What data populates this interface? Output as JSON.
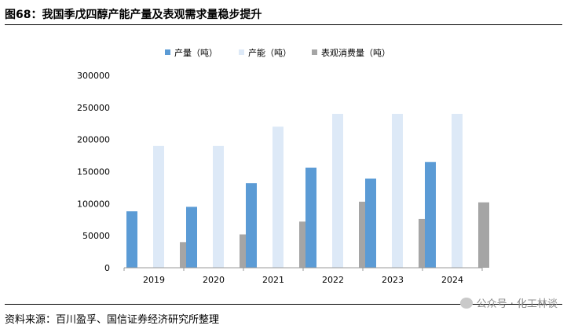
{
  "title": "图68：我国季戊四醇产能产量及表观需求量稳步提升",
  "source": "资料来源：百川盈孚、国信证券经济研究所整理",
  "watermark": "公众号 · 化工林谈",
  "colors": {
    "production": "#5b9bd5",
    "capacity": "#dde9f7",
    "demand": "#a5a5a5"
  },
  "chart_data": {
    "type": "bar",
    "categories": [
      "2019",
      "2020",
      "2021",
      "2022",
      "2023",
      "2024"
    ],
    "series": [
      {
        "name": "产量（吨）",
        "values": [
          88000,
          95000,
          132000,
          156000,
          139000,
          165000
        ]
      },
      {
        "name": "产能（吨）",
        "values": [
          190000,
          190000,
          220000,
          240000,
          240000,
          240000
        ]
      },
      {
        "name": "表观消费量（吨）",
        "values": [
          40000,
          52000,
          72000,
          103000,
          76000,
          102000
        ]
      }
    ],
    "yticks": [
      "0",
      "50000",
      "100000",
      "150000",
      "200000",
      "250000",
      "300000"
    ],
    "ylim": [
      0,
      300000
    ],
    "legend_position": "top",
    "grid": false
  }
}
